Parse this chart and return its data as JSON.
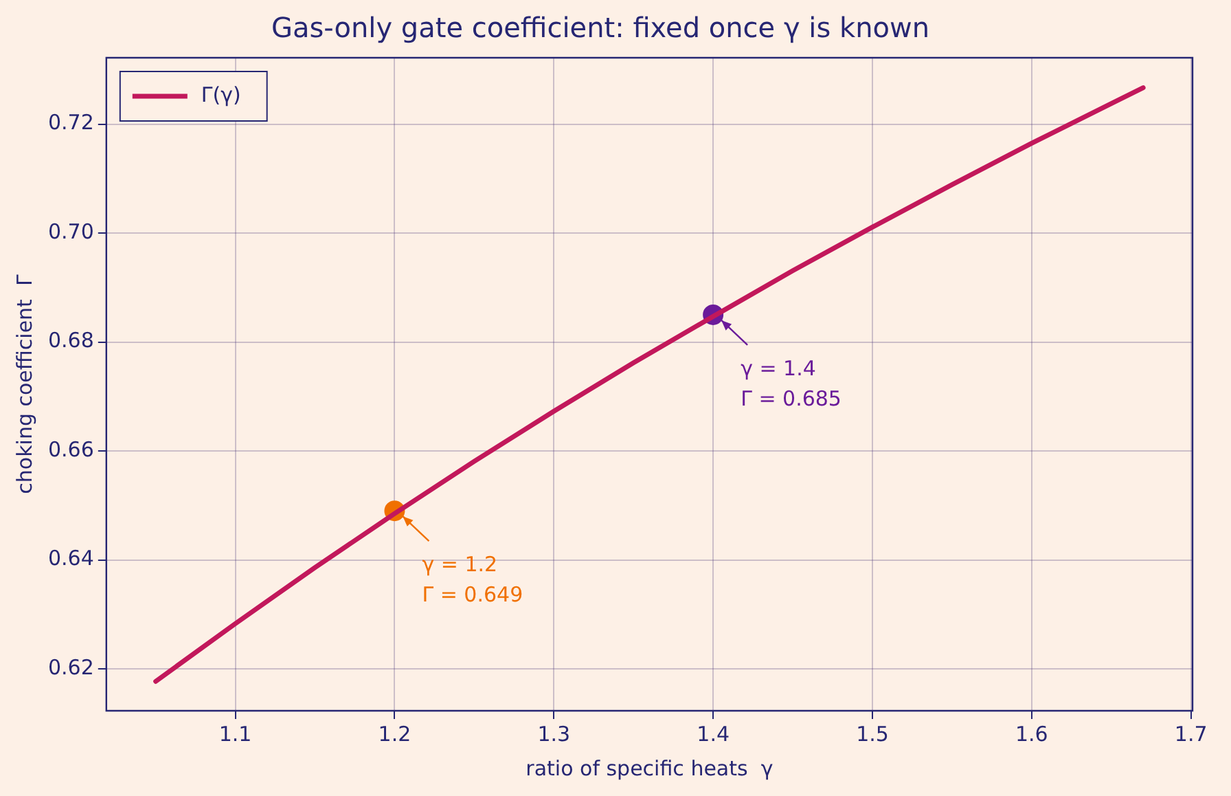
{
  "chart_data": {
    "type": "line",
    "title": "Gas-only gate coefficient: fixed once γ is known",
    "xlabel": "ratio of specific heats  γ",
    "ylabel": "choking coefficient  Γ",
    "xlim": [
      1.019,
      1.701
    ],
    "xticks": [
      1.1,
      1.2,
      1.3,
      1.4,
      1.5,
      1.6,
      1.7
    ],
    "ylim": [
      0.6123,
      0.7322
    ],
    "yticks": [
      0.62,
      0.64,
      0.66,
      0.68,
      {
        "value": 0.7,
        "label": "0.70"
      },
      0.72
    ],
    "grid": true,
    "legend": "top left",
    "series": [
      {
        "name": "Γ(γ)",
        "color": "#c2185b",
        "x": [
          1.05,
          1.1,
          1.15,
          1.2,
          1.25,
          1.3,
          1.35,
          1.4,
          1.45,
          1.5,
          1.55,
          1.6,
          1.65,
          1.67
        ],
        "values": [
          0.6177,
          0.6283,
          0.6386,
          0.6485,
          0.6581,
          0.6673,
          0.6762,
          0.6847,
          0.6931,
          0.7011,
          0.7089,
          0.7165,
          0.7238,
          0.7267
        ]
      },
      {
        "type": "scatter",
        "color": "#f07000",
        "x": [
          1.2
        ],
        "values": [
          0.649
        ]
      },
      {
        "type": "scatter",
        "color": "#6a1b9a",
        "x": [
          1.4
        ],
        "values": [
          0.685
        ]
      }
    ],
    "annotations": [
      {
        "text": "γ = 1.2\nΓ = 0.649",
        "x": 1.2,
        "y": 0.649
      },
      {
        "text": "γ = 1.4\nΓ = 0.685",
        "x": 1.4,
        "y": 0.685
      }
    ]
  }
}
